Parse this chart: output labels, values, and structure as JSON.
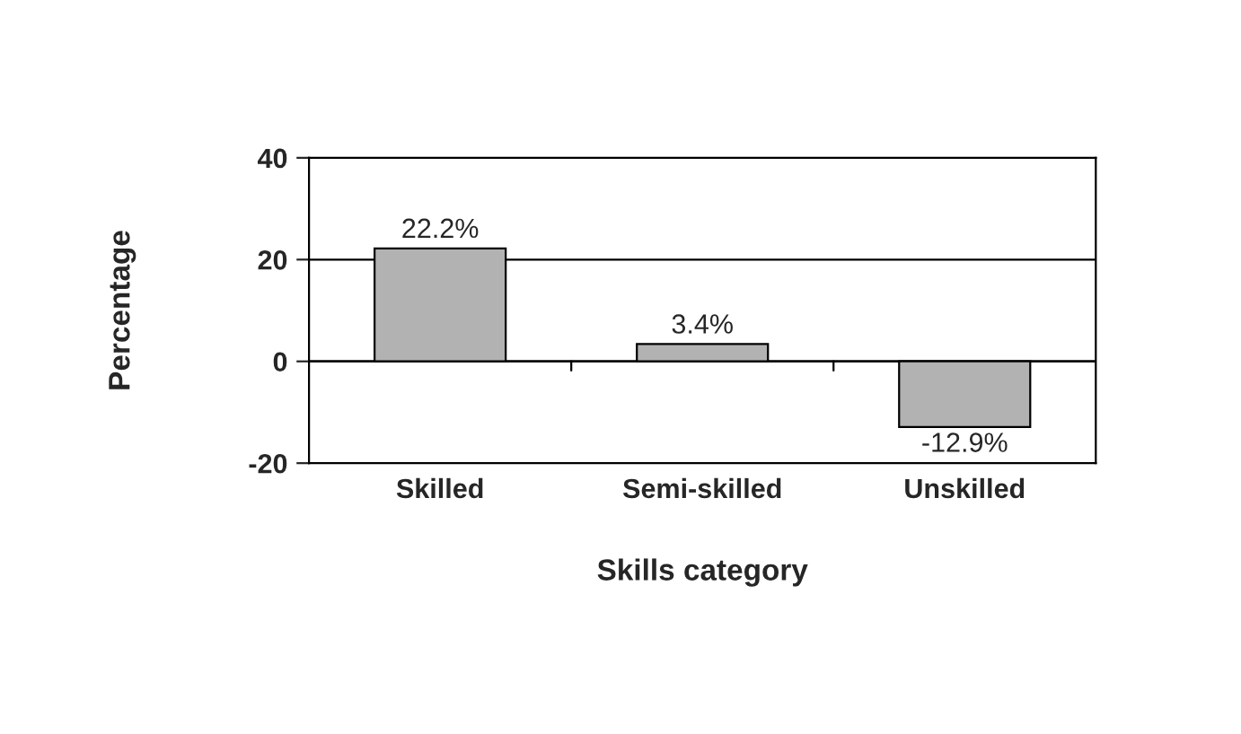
{
  "chart_data": {
    "type": "bar",
    "xlabel": "Skills category",
    "ylabel": "Percentage",
    "categories": [
      "Skilled",
      "Semi-skilled",
      "Unskilled"
    ],
    "values": [
      22.2,
      3.4,
      -12.9
    ],
    "value_labels": [
      "22.2%",
      "3.4%",
      "-12.9%"
    ],
    "color": "#b2b2b2",
    "ylim": [
      -20,
      40
    ],
    "yticks": [
      -20,
      0,
      20,
      40
    ],
    "grid": "y",
    "legend": false
  }
}
